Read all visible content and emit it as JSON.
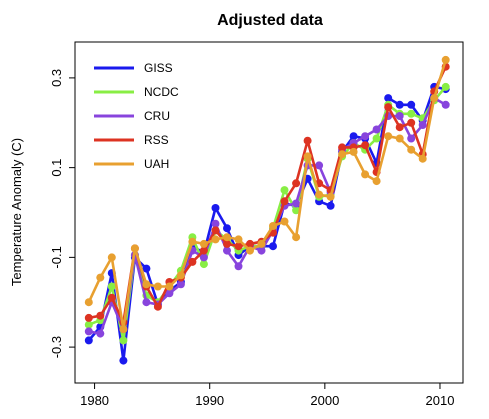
{
  "chart_data": {
    "type": "line",
    "title": "Adjusted data",
    "xlabel": "",
    "ylabel": "Temperature Anomaly (C)",
    "xlim": [
      1978.3,
      2012.0
    ],
    "ylim": [
      -0.38,
      0.38
    ],
    "x_ticks": [
      1980,
      1990,
      2000,
      2010
    ],
    "x_tick_labels": [
      "1980",
      "1990",
      "2000",
      "2010"
    ],
    "y_ticks": [
      -0.3,
      -0.1,
      0.1,
      0.3
    ],
    "y_tick_labels": [
      "-0.3",
      "-0.1",
      "0.1",
      "0.3"
    ],
    "grid": false,
    "legend_position": "top-left",
    "x": [
      1979.5,
      1980.5,
      1981.5,
      1982.5,
      1983.5,
      1984.5,
      1985.5,
      1986.5,
      1987.5,
      1988.5,
      1989.5,
      1990.5,
      1991.5,
      1992.5,
      1993.5,
      1994.5,
      1995.5,
      1996.5,
      1997.5,
      1998.5,
      1999.5,
      2000.5,
      2001.5,
      2002.5,
      2003.5,
      2004.5,
      2005.5,
      2006.5,
      2007.5,
      2008.5,
      2009.5,
      2010.5
    ],
    "series": [
      {
        "name": "GISS",
        "color": "#1a1aee",
        "values": [
          -0.285,
          -0.255,
          -0.135,
          -0.33,
          -0.1,
          -0.125,
          -0.205,
          -0.175,
          -0.155,
          -0.075,
          -0.09,
          0.01,
          -0.035,
          -0.095,
          -0.075,
          -0.075,
          -0.075,
          0.02,
          0.015,
          0.075,
          0.025,
          0.015,
          0.135,
          0.17,
          0.165,
          0.11,
          0.255,
          0.24,
          0.24,
          0.205,
          0.28,
          0.275
        ]
      },
      {
        "name": "NCDC",
        "color": "#88ee44",
        "values": [
          -0.25,
          -0.24,
          -0.165,
          -0.285,
          -0.095,
          -0.185,
          -0.2,
          -0.165,
          -0.13,
          -0.055,
          -0.115,
          -0.04,
          -0.06,
          -0.085,
          -0.075,
          -0.075,
          -0.035,
          0.05,
          0.005,
          0.12,
          0.035,
          0.04,
          0.125,
          0.155,
          0.14,
          0.165,
          0.24,
          0.22,
          0.22,
          0.21,
          0.25,
          0.28
        ]
      },
      {
        "name": "CRU",
        "color": "#8844dd",
        "values": [
          -0.265,
          -0.27,
          -0.2,
          -0.26,
          -0.095,
          -0.2,
          -0.205,
          -0.18,
          -0.16,
          -0.085,
          -0.1,
          -0.025,
          -0.085,
          -0.12,
          -0.075,
          -0.085,
          -0.04,
          0.015,
          0.02,
          0.105,
          0.105,
          0.045,
          0.14,
          0.155,
          0.17,
          0.185,
          0.215,
          0.215,
          0.165,
          0.195,
          0.255,
          0.24
        ]
      },
      {
        "name": "RSS",
        "color": "#dd3322",
        "values": [
          -0.235,
          -0.23,
          -0.19,
          -0.245,
          -0.08,
          -0.165,
          -0.21,
          -0.155,
          -0.145,
          -0.11,
          -0.085,
          -0.04,
          -0.07,
          -0.075,
          -0.07,
          -0.065,
          -0.045,
          0.025,
          0.065,
          0.16,
          0.065,
          0.05,
          0.145,
          0.145,
          0.15,
          0.09,
          0.235,
          0.19,
          0.2,
          0.13,
          0.27,
          0.325
        ]
      },
      {
        "name": "UAH",
        "color": "#e8a030",
        "values": [
          -0.2,
          -0.145,
          -0.1,
          -0.26,
          -0.08,
          -0.16,
          -0.165,
          -0.165,
          -0.14,
          -0.065,
          -0.07,
          -0.06,
          -0.055,
          -0.06,
          -0.085,
          -0.07,
          -0.03,
          -0.02,
          -0.055,
          0.125,
          0.04,
          0.035,
          0.13,
          0.135,
          0.085,
          0.07,
          0.17,
          0.165,
          0.14,
          0.12,
          0.255,
          0.34
        ]
      }
    ]
  }
}
